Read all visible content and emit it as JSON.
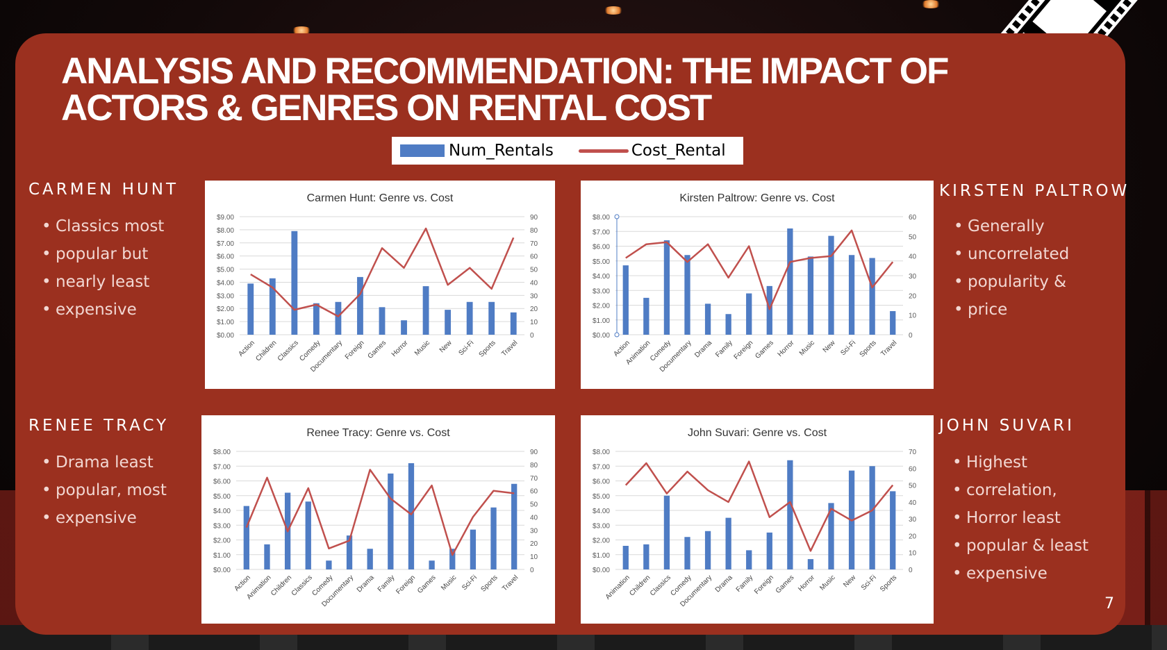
{
  "slide": {
    "title_line1": "ANALYSIS AND RECOMMENDATION: THE IMPACT OF",
    "title_line2": "ACTORS & GENRES ON RENTAL COST",
    "page_number": "7"
  },
  "legend": {
    "bar_label": "Num_Rentals",
    "line_label": "Cost_Rental"
  },
  "colors": {
    "panel": "#9b301f",
    "bar": "#4f7cc4",
    "line": "#c0504d",
    "text": "#ffffff"
  },
  "actors": [
    {
      "name": "CARMEN HUNT",
      "bullets": [
        "Classics most",
        "popular but",
        "nearly least",
        "expensive"
      ]
    },
    {
      "name": "KIRSTEN PALTROW",
      "bullets": [
        "Generally",
        "uncorrelated",
        "popularity &",
        "price"
      ]
    },
    {
      "name": "RENEE TRACY",
      "bullets": [
        "Drama least",
        "popular, most",
        "expensive"
      ]
    },
    {
      "name": "JOHN SUVARI",
      "bullets": [
        "Highest",
        "correlation,",
        "Horror least",
        "popular & least",
        "expensive"
      ]
    }
  ],
  "chart_data": [
    {
      "type": "bar",
      "title": "Carmen Hunt: Genre vs. Cost",
      "categories": [
        "Action",
        "Children",
        "Classics",
        "Comedy",
        "Documentary",
        "Foreign",
        "Games",
        "Horror",
        "Music",
        "New",
        "Sci-Fi",
        "Sports",
        "Travel"
      ],
      "series": [
        {
          "name": "Num_Rentals",
          "type": "bar",
          "axis": "left",
          "values": [
            3.9,
            4.3,
            7.9,
            2.4,
            2.5,
            4.4,
            2.1,
            1.1,
            3.7,
            1.9,
            2.5,
            2.5,
            1.7
          ]
        },
        {
          "name": "Cost_Rental",
          "type": "line",
          "axis": "right",
          "values": [
            46,
            36,
            19,
            23,
            14,
            31,
            66,
            51,
            81,
            38,
            51,
            35,
            74
          ]
        }
      ],
      "ylim_left": [
        0,
        9
      ],
      "ylim_right": [
        0,
        90
      ],
      "left_ticks": [
        "$0.00",
        "$1.00",
        "$2.00",
        "$3.00",
        "$4.00",
        "$5.00",
        "$6.00",
        "$7.00",
        "$8.00",
        "$9.00"
      ],
      "right_ticks": [
        "0",
        "10",
        "20",
        "30",
        "40",
        "50",
        "60",
        "70",
        "80",
        "90"
      ],
      "marker_on_left_axis": false
    },
    {
      "type": "bar",
      "title": "Kirsten Paltrow: Genre vs. Cost",
      "categories": [
        "Action",
        "Animation",
        "Comedy",
        "Documentary",
        "Drama",
        "Family",
        "Foreign",
        "Games",
        "Horror",
        "Music",
        "New",
        "Sci-Fi",
        "Sports",
        "Travel"
      ],
      "series": [
        {
          "name": "Num_Rentals",
          "type": "bar",
          "axis": "left",
          "values": [
            4.7,
            2.5,
            6.4,
            5.4,
            2.1,
            1.4,
            2.8,
            3.3,
            7.2,
            5.3,
            6.7,
            5.4,
            5.2,
            1.6
          ]
        },
        {
          "name": "Cost_Rental",
          "type": "line",
          "axis": "right",
          "values": [
            39,
            46,
            47,
            37,
            46,
            29,
            45,
            13,
            37,
            39,
            40,
            53,
            24,
            37
          ]
        }
      ],
      "ylim_left": [
        0,
        8
      ],
      "ylim_right": [
        0,
        60
      ],
      "left_ticks": [
        "$0.00",
        "$1.00",
        "$2.00",
        "$3.00",
        "$4.00",
        "$5.00",
        "$6.00",
        "$7.00",
        "$8.00"
      ],
      "right_ticks": [
        "0",
        "10",
        "20",
        "30",
        "40",
        "50",
        "60"
      ],
      "marker_on_left_axis": true
    },
    {
      "type": "bar",
      "title": "Renee Tracy: Genre vs. Cost",
      "categories": [
        "Action",
        "Animation",
        "Children",
        "Classics",
        "Comedy",
        "Documentary",
        "Drama",
        "Family",
        "Foreign",
        "Games",
        "Music",
        "Sci-Fi",
        "Sports",
        "Travel"
      ],
      "series": [
        {
          "name": "Num_Rentals",
          "type": "bar",
          "axis": "left",
          "values": [
            4.3,
            1.7,
            5.2,
            4.6,
            0.6,
            2.3,
            1.4,
            6.5,
            7.2,
            0.6,
            1.4,
            2.7,
            4.2,
            5.8
          ]
        },
        {
          "name": "Cost_Rental",
          "type": "line",
          "axis": "right",
          "values": [
            32,
            70,
            29,
            62,
            16,
            22,
            76,
            54,
            42,
            64,
            11,
            40,
            60,
            58
          ]
        }
      ],
      "ylim_left": [
        0,
        8
      ],
      "ylim_right": [
        0,
        90
      ],
      "left_ticks": [
        "$0.00",
        "$1.00",
        "$2.00",
        "$3.00",
        "$4.00",
        "$5.00",
        "$6.00",
        "$7.00",
        "$8.00"
      ],
      "right_ticks": [
        "0",
        "10",
        "20",
        "30",
        "40",
        "50",
        "60",
        "70",
        "80",
        "90"
      ],
      "marker_on_left_axis": false
    },
    {
      "type": "bar",
      "title": "John Suvari: Genre vs. Cost",
      "categories": [
        "Animation",
        "Children",
        "Classics",
        "Comedy",
        "Documentary",
        "Drama",
        "Family",
        "Foreign",
        "Games",
        "Horror",
        "Music",
        "New",
        "Sci-Fi",
        "Sports"
      ],
      "series": [
        {
          "name": "Num_Rentals",
          "type": "bar",
          "axis": "left",
          "values": [
            1.6,
            1.7,
            5.0,
            2.2,
            2.6,
            3.5,
            1.3,
            2.5,
            7.4,
            0.7,
            4.5,
            6.7,
            7.0,
            5.3
          ]
        },
        {
          "name": "Cost_Rental",
          "type": "line",
          "axis": "right",
          "values": [
            50,
            63,
            45,
            58,
            47,
            40,
            64,
            31,
            40,
            11,
            36,
            29,
            35,
            50
          ]
        }
      ],
      "ylim_left": [
        0,
        8
      ],
      "ylim_right": [
        0,
        70
      ],
      "left_ticks": [
        "$0.00",
        "$1.00",
        "$2.00",
        "$3.00",
        "$4.00",
        "$5.00",
        "$6.00",
        "$7.00",
        "$8.00"
      ],
      "right_ticks": [
        "0",
        "10",
        "20",
        "30",
        "40",
        "50",
        "60",
        "70"
      ],
      "marker_on_left_axis": false
    }
  ]
}
